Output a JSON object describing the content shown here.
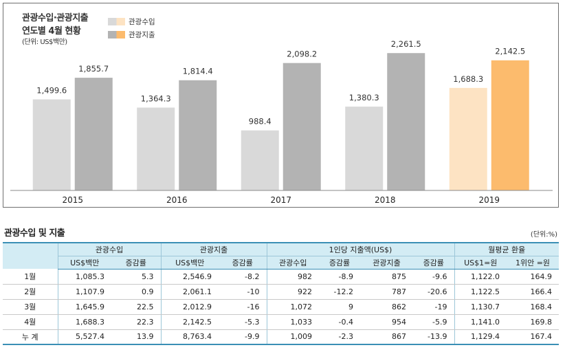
{
  "chart_data": {
    "type": "bar",
    "title": "관광수입·관광지출 연도별 4월 현황",
    "title_line1": "관광수입·관광지출",
    "title_line2": "연도별 4월 현황",
    "unit": "(단위: US$백만)",
    "categories": [
      "2015",
      "2016",
      "2017",
      "2018",
      "2019"
    ],
    "series": [
      {
        "name": "관광수입",
        "values": [
          1499.6,
          1364.3,
          988.4,
          1380.3,
          1688.3
        ],
        "labels": [
          "1,499.6",
          "1,364.3",
          "988.4",
          "1,380.3",
          "1,688.3"
        ]
      },
      {
        "name": "관광지출",
        "values": [
          1855.7,
          1814.4,
          2098.2,
          2261.5,
          2142.5
        ],
        "labels": [
          "1,855.7",
          "1,814.4",
          "2,098.2",
          "2,261.5",
          "2,142.5"
        ]
      }
    ],
    "ylim": [
      0,
      2400
    ],
    "colors": {
      "income": "#d9d9d9",
      "expense": "#b3b3b3",
      "income_highlight": "#fde3c3",
      "expense_highlight": "#fcbb6d"
    },
    "highlight_category": "2019",
    "legend_position": "top-left"
  },
  "table": {
    "title": "관광수입 및 지출",
    "unit": "(단위:%)",
    "group_headers": [
      "관광수입",
      "관광지출",
      "1인당 지출액(US$)",
      "월평균 환율"
    ],
    "sub_headers": [
      "US$백만",
      "증감률",
      "US$백만",
      "증감률",
      "관광수입",
      "증감률",
      "관광지출",
      "증감률",
      "US$1=원",
      "1위안 =원"
    ],
    "rows": [
      {
        "label": "1월",
        "cells": [
          "1,085.3",
          "5.3",
          "2,546.9",
          "-8.2",
          "982",
          "-8.9",
          "875",
          "-9.6",
          "1,122.0",
          "164.9"
        ]
      },
      {
        "label": "2월",
        "cells": [
          "1,107.9",
          "0.9",
          "2,061.1",
          "-10",
          "922",
          "-12.2",
          "787",
          "-20.6",
          "1,122.5",
          "166.4"
        ]
      },
      {
        "label": "3월",
        "cells": [
          "1,645.9",
          "22.5",
          "2,012.9",
          "-16",
          "1,072",
          "9",
          "862",
          "-19",
          "1,130.7",
          "168.4"
        ]
      },
      {
        "label": "4월",
        "cells": [
          "1,688.3",
          "22.3",
          "2,142.5",
          "-5.3",
          "1,033",
          "-0.4",
          "954",
          "-5.9",
          "1,141.0",
          "169.8"
        ]
      },
      {
        "label": "누 계",
        "cells": [
          "5,527.4",
          "13.9",
          "8,763.4",
          "-9.9",
          "1,009",
          "-2.3",
          "867",
          "-13.9",
          "1,129.4",
          "167.4"
        ]
      }
    ],
    "header_color": "#d3ecf4",
    "rule_color": "#3a8fb5"
  }
}
